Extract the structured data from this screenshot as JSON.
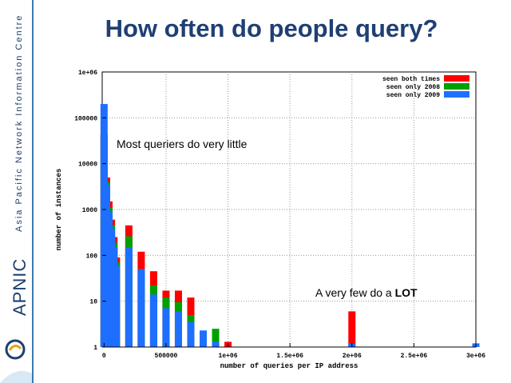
{
  "slide": {
    "title": "How often do people query?",
    "org_name": "Asia Pacific Network Information Centre",
    "brand": "APNIC"
  },
  "annotations": {
    "top": "Most queriers do very little",
    "bottom_prefix": "A very few do a ",
    "bottom_emph": "LOT"
  },
  "chart_data": {
    "type": "bar",
    "title": "",
    "xlabel": "number of queries per IP address",
    "ylabel": "number of instances",
    "xlim": [
      -15000,
      3000000
    ],
    "ylim": [
      1,
      1000000
    ],
    "yscale": "log",
    "grid": true,
    "legend_position": "top-right",
    "x_ticks": [
      0,
      500000,
      1000000,
      1500000,
      2000000,
      2500000,
      3000000
    ],
    "x_tick_labels": [
      "0",
      "500000",
      "1e+06",
      "1.5e+06",
      "2e+06",
      "2.5e+06",
      "3e+06"
    ],
    "y_ticks": [
      1,
      10,
      100,
      1000,
      10000,
      100000,
      1000000
    ],
    "y_tick_labels": [
      "1",
      "10",
      "100",
      "1000",
      "10000",
      "100000",
      "1e+06"
    ],
    "series": [
      {
        "name": "seen both times",
        "color": "#ff0000",
        "points": [
          [
            0,
            45000
          ],
          [
            20000,
            5000
          ],
          [
            40000,
            1500
          ],
          [
            60000,
            600
          ],
          [
            80000,
            250
          ],
          [
            100000,
            90
          ],
          [
            200000,
            450
          ],
          [
            300000,
            120
          ],
          [
            400000,
            45
          ],
          [
            500000,
            17
          ],
          [
            600000,
            17
          ],
          [
            700000,
            12
          ],
          [
            1000000,
            1.3
          ],
          [
            2000000,
            6
          ],
          [
            3000000,
            1.2
          ]
        ]
      },
      {
        "name": "seen only 2008",
        "color": "#00a000",
        "points": [
          [
            0,
            40000
          ],
          [
            20000,
            4000
          ],
          [
            40000,
            1100
          ],
          [
            60000,
            450
          ],
          [
            80000,
            190
          ],
          [
            100000,
            70
          ],
          [
            200000,
            260
          ],
          [
            300000,
            50
          ],
          [
            400000,
            22
          ],
          [
            500000,
            12
          ],
          [
            600000,
            9.5
          ],
          [
            700000,
            5
          ],
          [
            900000,
            2.5
          ]
        ]
      },
      {
        "name": "seen only 2009",
        "color": "#1e6fff",
        "points": [
          [
            0,
            200000
          ],
          [
            20000,
            3500
          ],
          [
            40000,
            900
          ],
          [
            60000,
            380
          ],
          [
            80000,
            150
          ],
          [
            100000,
            60
          ],
          [
            200000,
            150
          ],
          [
            300000,
            50
          ],
          [
            400000,
            14
          ],
          [
            500000,
            7
          ],
          [
            600000,
            6
          ],
          [
            700000,
            3.5
          ],
          [
            800000,
            2.3
          ],
          [
            900000,
            1.3
          ],
          [
            2000000,
            1.2
          ],
          [
            3000000,
            1.2
          ]
        ]
      }
    ]
  }
}
